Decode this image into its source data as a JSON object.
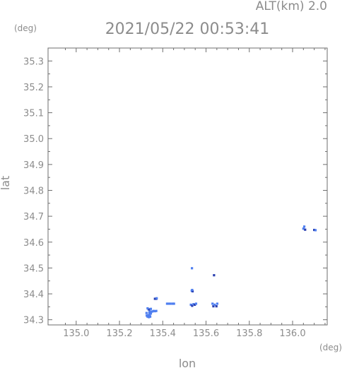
{
  "header": {
    "alt_label": "ALT(km) 2.0",
    "datetime": "2021/05/22 00:53:41"
  },
  "chart_data": {
    "type": "scatter",
    "title": "2021/05/22 00:53:41",
    "subtitle": "ALT(km) 2.0",
    "xlabel": "lon",
    "ylabel": "lat",
    "x_unit": "(deg)",
    "y_unit": "(deg)",
    "xlim": [
      134.87,
      136.16
    ],
    "ylim": [
      34.28,
      35.35
    ],
    "xticks": [
      "135.0",
      "135.2",
      "135.4",
      "135.6",
      "135.8",
      "136.0"
    ],
    "xtick_values": [
      135.0,
      135.2,
      135.4,
      135.6,
      135.8,
      136.0
    ],
    "yticks": [
      "34.3",
      "34.4",
      "34.5",
      "34.6",
      "34.7",
      "34.8",
      "34.9",
      "35.0",
      "35.1",
      "35.2",
      "35.3"
    ],
    "ytick_values": [
      34.3,
      34.4,
      34.5,
      34.6,
      34.7,
      34.8,
      34.9,
      35.0,
      35.1,
      35.2,
      35.3
    ],
    "grid": false,
    "colors": {
      "light": "#4f7ff0",
      "dark": "#2a3fb0"
    },
    "points": [
      {
        "x": 135.33,
        "y": 34.312,
        "c": "light"
      },
      {
        "x": 135.336,
        "y": 34.31,
        "c": "light"
      },
      {
        "x": 135.342,
        "y": 34.312,
        "c": "light"
      },
      {
        "x": 135.326,
        "y": 34.316,
        "c": "light"
      },
      {
        "x": 135.334,
        "y": 34.318,
        "c": "light"
      },
      {
        "x": 135.34,
        "y": 34.32,
        "c": "light"
      },
      {
        "x": 135.345,
        "y": 34.324,
        "c": "light"
      },
      {
        "x": 135.338,
        "y": 34.328,
        "c": "light"
      },
      {
        "x": 135.346,
        "y": 34.33,
        "c": "light"
      },
      {
        "x": 135.352,
        "y": 34.332,
        "c": "light"
      },
      {
        "x": 135.358,
        "y": 34.334,
        "c": "light"
      },
      {
        "x": 135.364,
        "y": 34.333,
        "c": "light"
      },
      {
        "x": 135.37,
        "y": 34.334,
        "c": "light"
      },
      {
        "x": 135.34,
        "y": 34.336,
        "c": "light"
      },
      {
        "x": 135.335,
        "y": 34.34,
        "c": "dark"
      },
      {
        "x": 135.33,
        "y": 34.344,
        "c": "light"
      },
      {
        "x": 135.345,
        "y": 34.342,
        "c": "light"
      },
      {
        "x": 135.325,
        "y": 34.326,
        "c": "light"
      },
      {
        "x": 135.364,
        "y": 34.381,
        "c": "dark"
      },
      {
        "x": 135.37,
        "y": 34.381,
        "c": "dark"
      },
      {
        "x": 135.372,
        "y": 34.383,
        "c": "light"
      },
      {
        "x": 135.42,
        "y": 34.362,
        "c": "light"
      },
      {
        "x": 135.428,
        "y": 34.362,
        "c": "light"
      },
      {
        "x": 135.436,
        "y": 34.362,
        "c": "light"
      },
      {
        "x": 135.446,
        "y": 34.362,
        "c": "light"
      },
      {
        "x": 135.452,
        "y": 34.362,
        "c": "light"
      },
      {
        "x": 135.53,
        "y": 34.358,
        "c": "light"
      },
      {
        "x": 135.536,
        "y": 34.354,
        "c": "dark"
      },
      {
        "x": 135.542,
        "y": 34.36,
        "c": "light"
      },
      {
        "x": 135.548,
        "y": 34.358,
        "c": "dark"
      },
      {
        "x": 135.554,
        "y": 34.362,
        "c": "light"
      },
      {
        "x": 135.534,
        "y": 34.412,
        "c": "light"
      },
      {
        "x": 135.538,
        "y": 34.41,
        "c": "dark"
      },
      {
        "x": 135.536,
        "y": 34.415,
        "c": "light"
      },
      {
        "x": 135.535,
        "y": 34.499,
        "c": "light"
      },
      {
        "x": 135.637,
        "y": 34.472,
        "c": "dark"
      },
      {
        "x": 135.63,
        "y": 34.362,
        "c": "light"
      },
      {
        "x": 135.634,
        "y": 34.352,
        "c": "dark"
      },
      {
        "x": 135.64,
        "y": 34.358,
        "c": "light"
      },
      {
        "x": 135.648,
        "y": 34.352,
        "c": "dark"
      },
      {
        "x": 135.652,
        "y": 34.362,
        "c": "light"
      },
      {
        "x": 136.05,
        "y": 34.652,
        "c": "light"
      },
      {
        "x": 136.054,
        "y": 34.66,
        "c": "light"
      },
      {
        "x": 136.058,
        "y": 34.648,
        "c": "dark"
      },
      {
        "x": 136.1,
        "y": 34.647,
        "c": "dark"
      },
      {
        "x": 136.106,
        "y": 34.646,
        "c": "light"
      }
    ]
  }
}
